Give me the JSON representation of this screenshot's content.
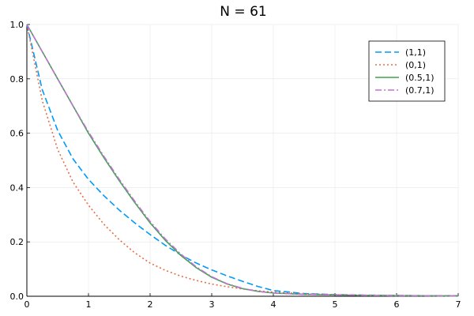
{
  "chart_data": {
    "type": "line",
    "title": "N = 61",
    "xlabel": "",
    "ylabel": "",
    "xlim": [
      0,
      7
    ],
    "ylim": [
      0,
      1
    ],
    "xticks": [
      0,
      1,
      2,
      3,
      4,
      5,
      6,
      7
    ],
    "yticks": [
      0.0,
      0.2,
      0.4,
      0.6,
      0.8,
      1.0
    ],
    "xtick_labels": [
      "0",
      "1",
      "2",
      "3",
      "4",
      "5",
      "6",
      "7"
    ],
    "ytick_labels": [
      "0.0",
      "0.2",
      "0.4",
      "0.6",
      "0.8",
      "1.0"
    ],
    "grid": true,
    "legend_position": "top-right",
    "x": [
      0,
      0.25,
      0.5,
      0.75,
      1,
      1.25,
      1.5,
      1.75,
      2,
      2.25,
      2.5,
      2.75,
      3,
      3.25,
      3.5,
      3.75,
      4,
      4.5,
      5,
      5.5,
      6,
      6.5,
      7
    ],
    "series": [
      {
        "name": "(1,1)",
        "color": "#009af9",
        "style": "dash",
        "values": [
          1.0,
          0.76,
          0.61,
          0.505,
          0.43,
          0.37,
          0.317,
          0.27,
          0.227,
          0.187,
          0.152,
          0.122,
          0.097,
          0.075,
          0.055,
          0.036,
          0.021,
          0.01,
          0.006,
          0.004,
          0.003,
          0.002,
          0.002
        ]
      },
      {
        "name": "(0,1)",
        "color": "#e26f46",
        "style": "dot",
        "values": [
          1.0,
          0.72,
          0.54,
          0.42,
          0.335,
          0.265,
          0.208,
          0.16,
          0.122,
          0.095,
          0.074,
          0.058,
          0.045,
          0.035,
          0.027,
          0.02,
          0.015,
          0.009,
          0.006,
          0.004,
          0.003,
          0.002,
          0.002
        ]
      },
      {
        "name": "(0.5,1)",
        "color": "#3da44d",
        "style": "solid",
        "values": [
          1.0,
          0.9,
          0.8,
          0.7,
          0.6,
          0.51,
          0.425,
          0.345,
          0.27,
          0.205,
          0.15,
          0.105,
          0.07,
          0.045,
          0.028,
          0.018,
          0.012,
          0.007,
          0.005,
          0.003,
          0.002,
          0.002,
          0.001
        ]
      },
      {
        "name": "(0.7,1)",
        "color": "#c271d2",
        "style": "dashdot",
        "values": [
          1.0,
          0.9,
          0.8,
          0.7,
          0.605,
          0.515,
          0.43,
          0.35,
          0.275,
          0.21,
          0.155,
          0.108,
          0.072,
          0.046,
          0.029,
          0.018,
          0.012,
          0.007,
          0.005,
          0.003,
          0.002,
          0.002,
          0.001
        ]
      }
    ]
  }
}
